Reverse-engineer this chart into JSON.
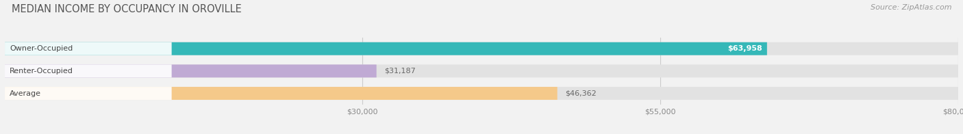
{
  "title": "MEDIAN INCOME BY OCCUPANCY IN OROVILLE",
  "source": "Source: ZipAtlas.com",
  "categories": [
    "Owner-Occupied",
    "Renter-Occupied",
    "Average"
  ],
  "values": [
    63958,
    31187,
    46362
  ],
  "labels": [
    "$63,958",
    "$31,187",
    "$46,362"
  ],
  "bar_colors": [
    "#35b8b8",
    "#c0aad4",
    "#f5c98a"
  ],
  "xlim_min": 0,
  "xlim_max": 80000,
  "xticks": [
    30000,
    55000,
    80000
  ],
  "xticklabels": [
    "$30,000",
    "$55,000",
    "$80,000"
  ],
  "background_color": "#f2f2f2",
  "bar_bg_color": "#e2e2e2",
  "title_fontsize": 10.5,
  "source_fontsize": 8,
  "value_fontsize": 8,
  "category_fontsize": 8,
  "bar_height": 0.58,
  "label_value_inside": [
    true,
    false,
    false
  ],
  "label_color_inside": "#ffffff",
  "label_color_outside": "#666666"
}
